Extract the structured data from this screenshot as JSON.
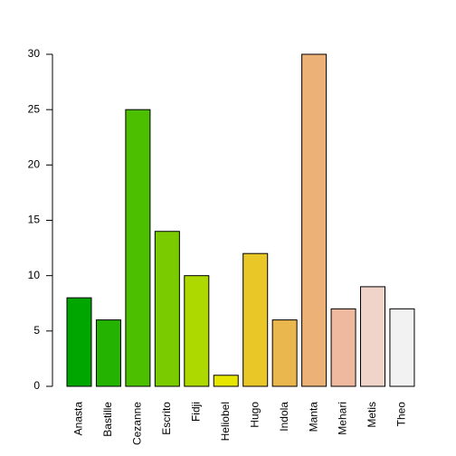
{
  "chart_data": {
    "type": "bar",
    "categories": [
      "Anasta",
      "Bastille",
      "Cezanne",
      "Escrito",
      "Fidji",
      "Heliobel",
      "Hugo",
      "Indola",
      "Manta",
      "Mehari",
      "Metis",
      "Theo"
    ],
    "values": [
      8,
      6,
      25,
      14,
      10,
      1,
      12,
      6,
      30,
      7,
      9,
      7
    ],
    "colors": [
      "#00A600",
      "#24B300",
      "#4CBF00",
      "#7ACC00",
      "#ADD900",
      "#E6E600",
      "#E8C727",
      "#EAB64E",
      "#ECB176",
      "#EEB99F",
      "#F0D3C9",
      "#F2F2F2"
    ],
    "ylim": [
      0,
      30
    ],
    "yticks": [
      0,
      5,
      10,
      15,
      20,
      25,
      30
    ]
  }
}
